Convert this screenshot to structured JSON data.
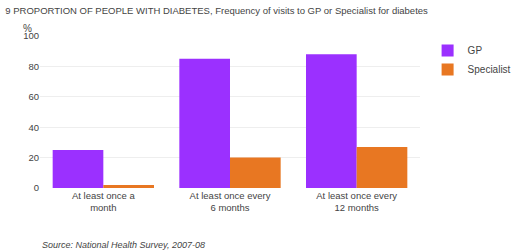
{
  "chart_data": {
    "type": "bar",
    "title": "9 PROPORTION OF PEOPLE WITH DIABETES, Frequency of visits to GP or Specialist for diabetes",
    "categories": [
      "At least once a\nmonth",
      "At least once every\n6 months",
      "At least once every\n12 months"
    ],
    "series": [
      {
        "name": "GP",
        "color": "#9B30FF",
        "values": [
          25,
          85,
          88
        ]
      },
      {
        "name": "Specialist",
        "color": "#E87722",
        "values": [
          2,
          20,
          27
        ]
      }
    ],
    "ylabel": "%",
    "ylim": [
      0,
      100
    ],
    "yticks": [
      0,
      20,
      40,
      60,
      80,
      100
    ],
    "annotations": [
      "Source: National Health Survey, 2007-08"
    ],
    "grid": true,
    "legend": "upper right"
  }
}
